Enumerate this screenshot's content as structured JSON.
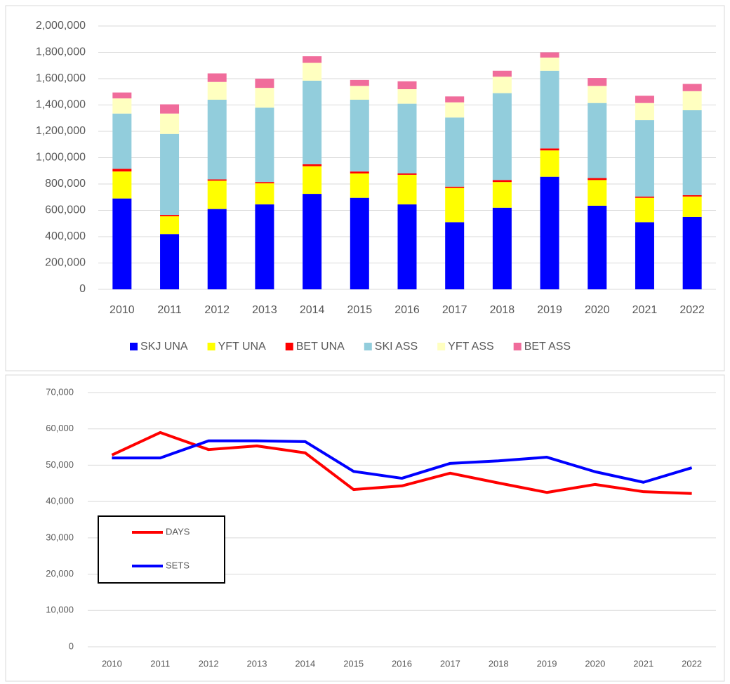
{
  "chart_data": [
    {
      "type": "bar",
      "stacked": true,
      "grid": true,
      "legend": "bottom",
      "categories": [
        "2010",
        "2011",
        "2012",
        "2013",
        "2014",
        "2015",
        "2016",
        "2017",
        "2018",
        "2019",
        "2020",
        "2021",
        "2022"
      ],
      "ylim": [
        0,
        2000000
      ],
      "yticks": [
        0,
        {
          "value": 200000,
          "label": "200,000"
        },
        {
          "value": 400000,
          "label": "400,000"
        },
        {
          "value": 600000,
          "label": "600,000"
        },
        {
          "value": 800000,
          "label": "800,000"
        },
        {
          "value": 1000000,
          "label": "1,000,000"
        },
        {
          "value": 1200000,
          "label": "1,200,000"
        },
        {
          "value": 1400000,
          "label": "1,400,000"
        },
        {
          "value": 1600000,
          "label": "1,600,000"
        },
        {
          "value": 1800000,
          "label": "1,800,000"
        },
        {
          "value": 2000000,
          "label": "2,000,000"
        }
      ],
      "series": [
        {
          "name": "SKJ UNA",
          "color": "#0000ff",
          "values": [
            690000,
            420000,
            610000,
            645000,
            725000,
            695000,
            645000,
            510000,
            620000,
            855000,
            635000,
            510000,
            550000
          ]
        },
        {
          "name": "YFT UNA",
          "color": "#ffff00",
          "values": [
            205000,
            135000,
            215000,
            160000,
            210000,
            185000,
            225000,
            260000,
            195000,
            200000,
            195000,
            185000,
            155000
          ]
        },
        {
          "name": "BET UNA",
          "color": "#ff0000",
          "values": [
            20000,
            10000,
            10000,
            10000,
            15000,
            15000,
            10000,
            10000,
            15000,
            15000,
            15000,
            10000,
            10000
          ]
        },
        {
          "name": "SKI ASS",
          "color": "#92cddc",
          "values": [
            420000,
            615000,
            605000,
            565000,
            635000,
            545000,
            530000,
            525000,
            660000,
            590000,
            570000,
            580000,
            645000
          ]
        },
        {
          "name": "YFT ASS",
          "color": "#ffffc0",
          "values": [
            115000,
            155000,
            135000,
            150000,
            135000,
            105000,
            110000,
            115000,
            125000,
            100000,
            130000,
            130000,
            145000
          ]
        },
        {
          "name": "BET ASS",
          "color": "#f06c9b",
          "values": [
            45000,
            70000,
            65000,
            70000,
            50000,
            45000,
            60000,
            45000,
            45000,
            40000,
            60000,
            55000,
            55000
          ]
        }
      ]
    },
    {
      "type": "line",
      "grid": true,
      "legend": "middle left",
      "categories": [
        "2010",
        "2011",
        "2012",
        "2013",
        "2014",
        "2015",
        "2016",
        "2017",
        "2018",
        "2019",
        "2020",
        "2021",
        "2022"
      ],
      "ylim": [
        0,
        70000
      ],
      "yticks": [
        0,
        {
          "value": 10000,
          "label": "10,000"
        },
        {
          "value": 20000,
          "label": "20,000"
        },
        {
          "value": 30000,
          "label": "30,000"
        },
        {
          "value": 40000,
          "label": "40,000"
        },
        {
          "value": 50000,
          "label": "50,000"
        },
        {
          "value": 60000,
          "label": "60,000"
        },
        {
          "value": 70000,
          "label": "70,000"
        }
      ],
      "series": [
        {
          "name": "DAYS",
          "color": "#ff0000",
          "values": [
            52800,
            59000,
            54300,
            55300,
            53400,
            43300,
            44300,
            47800,
            45100,
            42500,
            44700,
            42700,
            42200
          ]
        },
        {
          "name": "SETS",
          "color": "#0000ff",
          "values": [
            52000,
            52000,
            56700,
            56700,
            56500,
            48300,
            46400,
            50500,
            51200,
            52200,
            48200,
            45300,
            49300
          ]
        }
      ]
    }
  ]
}
